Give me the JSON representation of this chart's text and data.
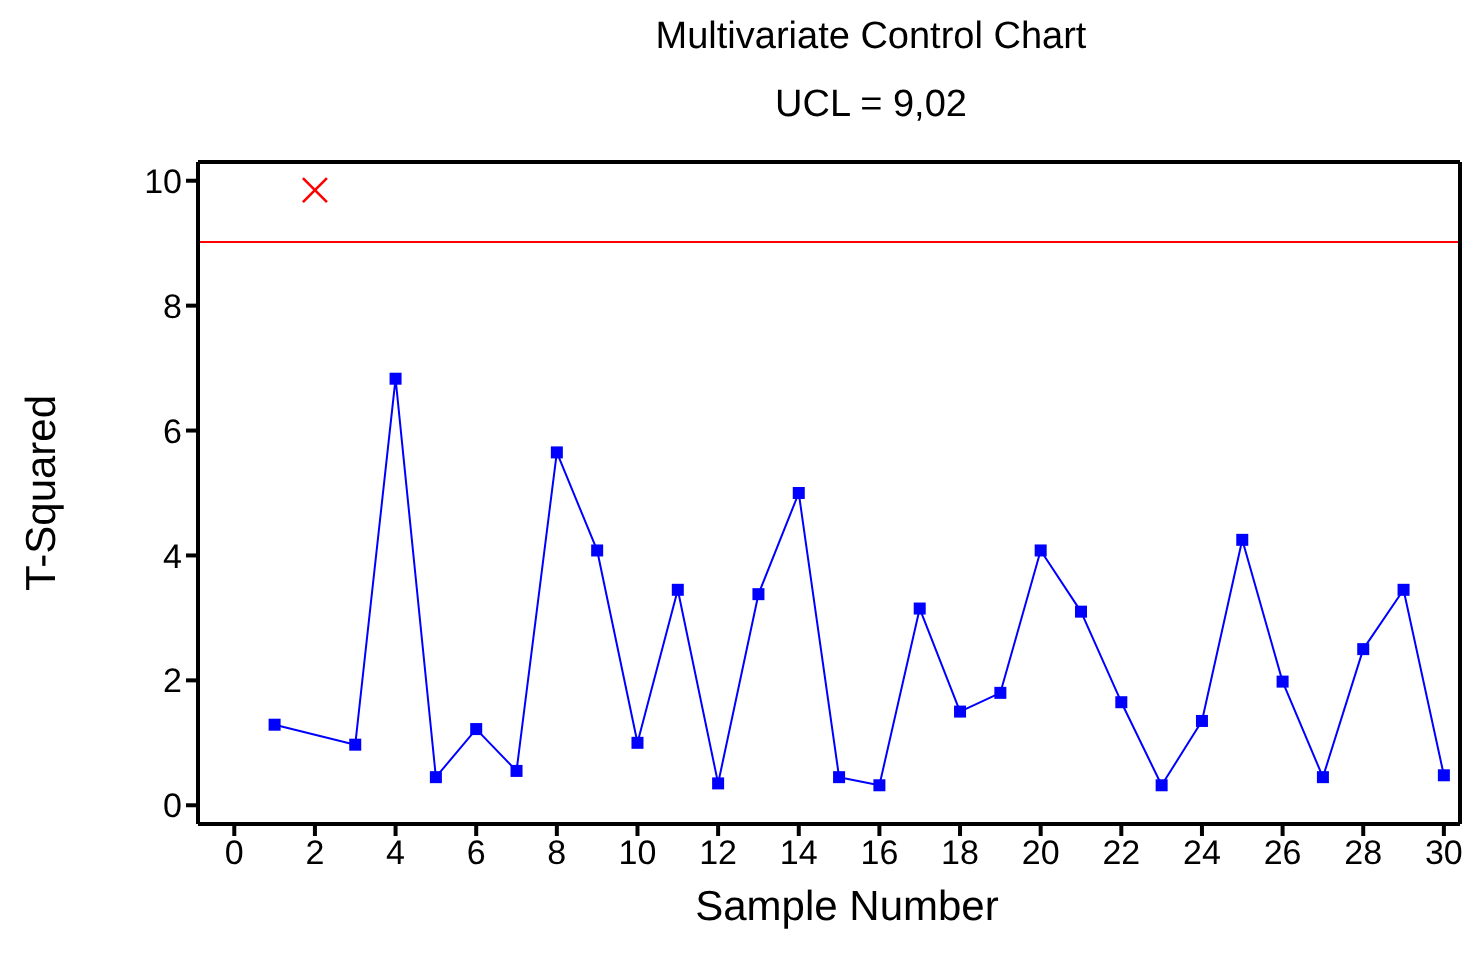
{
  "chart_data": {
    "type": "line",
    "title": "Multivariate Control Chart",
    "subtitle": "UCL = 9,02",
    "xlabel": "Sample Number",
    "ylabel": "T-Squared",
    "x": [
      1,
      2,
      3,
      4,
      5,
      6,
      7,
      8,
      9,
      10,
      11,
      12,
      13,
      14,
      15,
      16,
      17,
      18,
      19,
      20,
      21,
      22,
      23,
      24,
      25,
      26,
      27,
      28,
      29,
      30
    ],
    "series": [
      {
        "color": "#0000ff",
        "marker": "square",
        "line_style": "solid",
        "values": [
          1.29,
          null,
          0.97,
          6.83,
          0.45,
          1.22,
          0.55,
          5.65,
          4.08,
          1.0,
          3.45,
          0.35,
          3.38,
          5.0,
          0.45,
          0.32,
          3.15,
          1.5,
          1.8,
          4.08,
          3.1,
          1.65,
          0.32,
          1.35,
          4.25,
          1.98,
          0.45,
          2.5,
          3.45,
          0.48
        ]
      },
      {
        "type": "scatter",
        "color": "#ff0000",
        "marker": "cross",
        "values": [
          null,
          9.85,
          null,
          null,
          null,
          null,
          null,
          null,
          null,
          null,
          null,
          null,
          null,
          null,
          null,
          null,
          null,
          null,
          null,
          null,
          null,
          null,
          null,
          null,
          null,
          null,
          null,
          null,
          null,
          null
        ]
      }
    ],
    "ref_lines": [
      {
        "axis": "y",
        "value": 9.02,
        "color": "#ff0000",
        "line_style": "solid"
      }
    ],
    "xlim": [
      -0.9,
      30.4
    ],
    "xticks": [
      0,
      2,
      4,
      6,
      8,
      10,
      12,
      14,
      16,
      18,
      20,
      22,
      24,
      26,
      28,
      30
    ],
    "ylim": [
      -0.3,
      10.3
    ],
    "yticks": [
      0,
      2,
      4,
      6,
      8,
      10
    ],
    "grid": false,
    "legend": false
  }
}
